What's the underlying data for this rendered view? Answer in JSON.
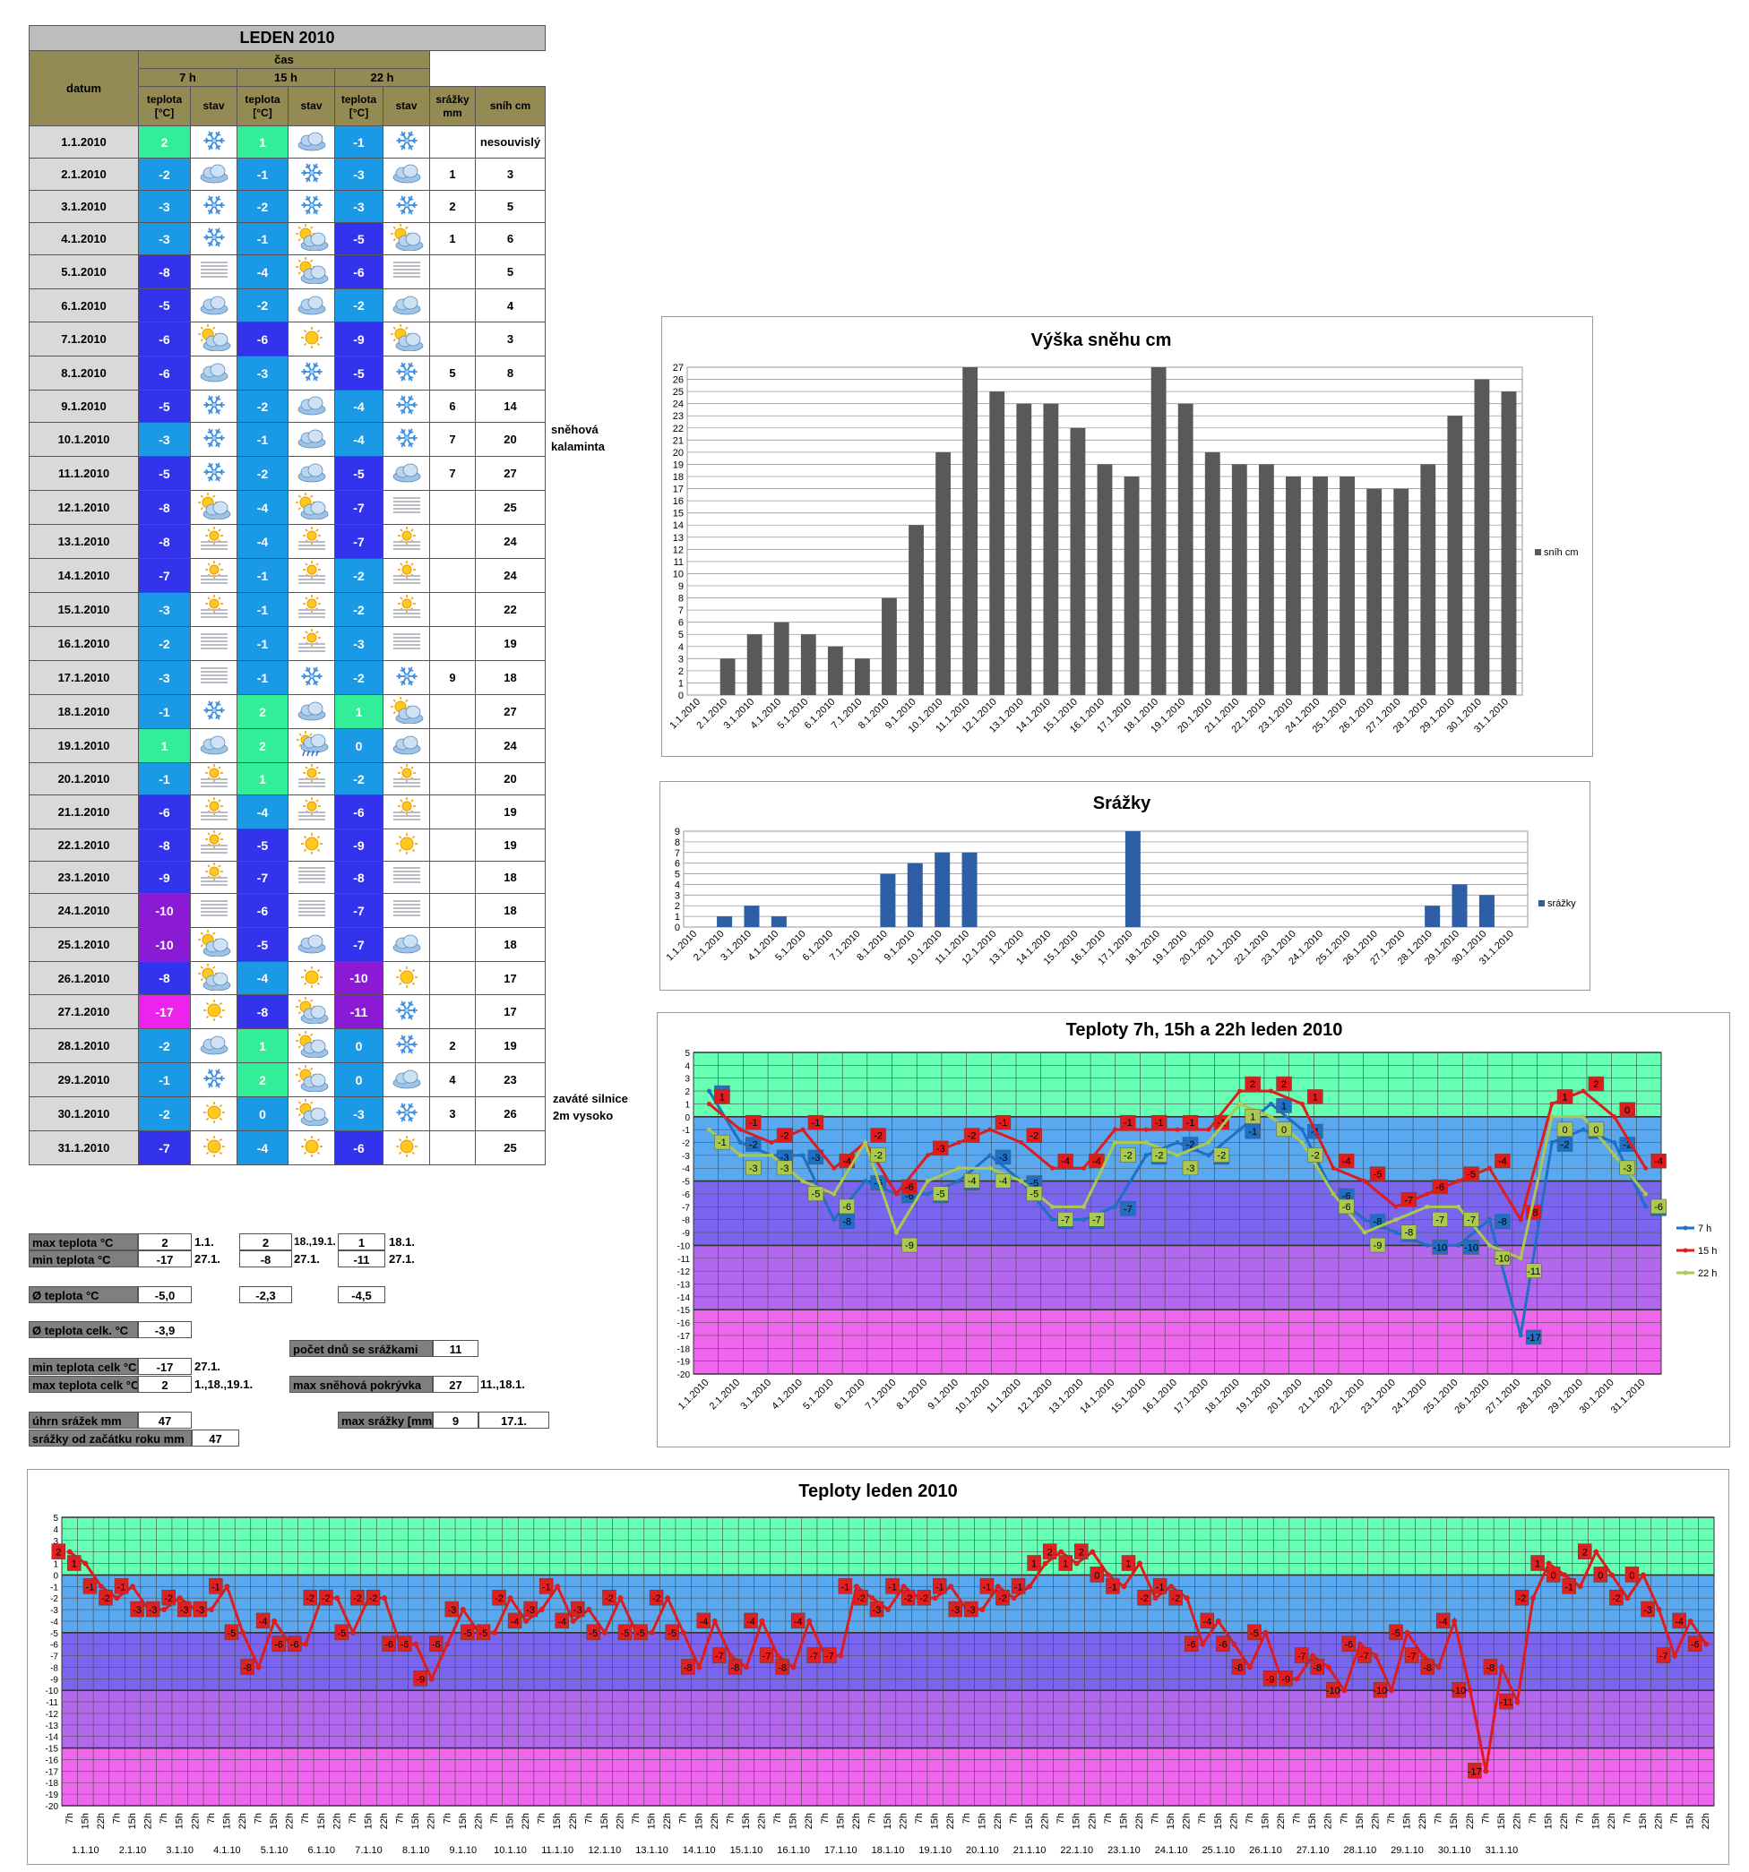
{
  "table": {
    "title": "LEDEN 2010",
    "h_datum": "datum",
    "h_cas": "čas",
    "h_7h": "7 h",
    "h_15h": "15 h",
    "h_22h": "22 h",
    "h_teplota": "teplota [°C]",
    "h_stav": "stav",
    "h_srazky": "srážky mm",
    "h_snih": "sníh cm",
    "rows": [
      {
        "d": "1.1.2010",
        "t7": "2",
        "s7": "snow",
        "t15": "1",
        "s15": "cloud",
        "t22": "-1",
        "s22": "snow",
        "sr": "",
        "sn": "nesouvislý"
      },
      {
        "d": "2.1.2010",
        "t7": "-2",
        "s7": "cloud",
        "t15": "-1",
        "s15": "snow",
        "t22": "-3",
        "s22": "cloud",
        "sr": "1",
        "sn": "3"
      },
      {
        "d": "3.1.2010",
        "t7": "-3",
        "s7": "snow",
        "t15": "-2",
        "s15": "snow",
        "t22": "-3",
        "s22": "snow",
        "sr": "2",
        "sn": "5"
      },
      {
        "d": "4.1.2010",
        "t7": "-3",
        "s7": "snow",
        "t15": "-1",
        "s15": "partly",
        "t22": "-5",
        "s22": "partly",
        "sr": "1",
        "sn": "6"
      },
      {
        "d": "5.1.2010",
        "t7": "-8",
        "s7": "fog",
        "t15": "-4",
        "s15": "partly",
        "t22": "-6",
        "s22": "fog",
        "sr": "",
        "sn": "5"
      },
      {
        "d": "6.1.2010",
        "t7": "-5",
        "s7": "cloud",
        "t15": "-2",
        "s15": "cloud",
        "t22": "-2",
        "s22": "cloud",
        "sr": "",
        "sn": "4"
      },
      {
        "d": "7.1.2010",
        "t7": "-6",
        "s7": "partly",
        "t15": "-6",
        "s15": "sun",
        "t22": "-9",
        "s22": "partly",
        "sr": "",
        "sn": "3"
      },
      {
        "d": "8.1.2010",
        "t7": "-6",
        "s7": "cloud",
        "t15": "-3",
        "s15": "snow",
        "t22": "-5",
        "s22": "snow",
        "sr": "5",
        "sn": "8"
      },
      {
        "d": "9.1.2010",
        "t7": "-5",
        "s7": "snow",
        "t15": "-2",
        "s15": "cloud",
        "t22": "-4",
        "s22": "snow",
        "sr": "6",
        "sn": "14"
      },
      {
        "d": "10.1.2010",
        "t7": "-3",
        "s7": "snow",
        "t15": "-1",
        "s15": "cloud",
        "t22": "-4",
        "s22": "snow",
        "sr": "7",
        "sn": "20"
      },
      {
        "d": "11.1.2010",
        "t7": "-5",
        "s7": "snow",
        "t15": "-2",
        "s15": "cloud",
        "t22": "-5",
        "s22": "cloud",
        "sr": "7",
        "sn": "27"
      },
      {
        "d": "12.1.2010",
        "t7": "-8",
        "s7": "partly",
        "t15": "-4",
        "s15": "partly",
        "t22": "-7",
        "s22": "fog",
        "sr": "",
        "sn": "25"
      },
      {
        "d": "13.1.2010",
        "t7": "-8",
        "s7": "fogsun",
        "t15": "-4",
        "s15": "fogsun",
        "t22": "-7",
        "s22": "fogsun",
        "sr": "",
        "sn": "24"
      },
      {
        "d": "14.1.2010",
        "t7": "-7",
        "s7": "fogsun",
        "t15": "-1",
        "s15": "fogsun",
        "t22": "-2",
        "s22": "fogsun",
        "sr": "",
        "sn": "24"
      },
      {
        "d": "15.1.2010",
        "t7": "-3",
        "s7": "fogsun",
        "t15": "-1",
        "s15": "fogsun",
        "t22": "-2",
        "s22": "fogsun",
        "sr": "",
        "sn": "22"
      },
      {
        "d": "16.1.2010",
        "t7": "-2",
        "s7": "fog",
        "t15": "-1",
        "s15": "fogsun",
        "t22": "-3",
        "s22": "fog",
        "sr": "",
        "sn": "19"
      },
      {
        "d": "17.1.2010",
        "t7": "-3",
        "s7": "fog",
        "t15": "-1",
        "s15": "snow",
        "t22": "-2",
        "s22": "snow",
        "sr": "9",
        "sn": "18"
      },
      {
        "d": "18.1.2010",
        "t7": "-1",
        "s7": "snow",
        "t15": "2",
        "s15": "cloud",
        "t22": "1",
        "s22": "partly",
        "sr": "",
        "sn": "27"
      },
      {
        "d": "19.1.2010",
        "t7": "1",
        "s7": "cloud",
        "t15": "2",
        "s15": "rain",
        "t22": "0",
        "s22": "cloud",
        "sr": "",
        "sn": "24"
      },
      {
        "d": "20.1.2010",
        "t7": "-1",
        "s7": "fogsun",
        "t15": "1",
        "s15": "fogsun",
        "t22": "-2",
        "s22": "fogsun",
        "sr": "",
        "sn": "20"
      },
      {
        "d": "21.1.2010",
        "t7": "-6",
        "s7": "fogsun",
        "t15": "-4",
        "s15": "fogsun",
        "t22": "-6",
        "s22": "fogsun",
        "sr": "",
        "sn": "19"
      },
      {
        "d": "22.1.2010",
        "t7": "-8",
        "s7": "fogsun",
        "t15": "-5",
        "s15": "sun",
        "t22": "-9",
        "s22": "sun",
        "sr": "",
        "sn": "19"
      },
      {
        "d": "23.1.2010",
        "t7": "-9",
        "s7": "fogsun",
        "t15": "-7",
        "s15": "fog",
        "t22": "-8",
        "s22": "fog",
        "sr": "",
        "sn": "18"
      },
      {
        "d": "24.1.2010",
        "t7": "-10",
        "s7": "fog",
        "t15": "-6",
        "s15": "fog",
        "t22": "-7",
        "s22": "fog",
        "sr": "",
        "sn": "18"
      },
      {
        "d": "25.1.2010",
        "t7": "-10",
        "s7": "partly",
        "t15": "-5",
        "s15": "cloud",
        "t22": "-7",
        "s22": "cloud",
        "sr": "",
        "sn": "18"
      },
      {
        "d": "26.1.2010",
        "t7": "-8",
        "s7": "partly",
        "t15": "-4",
        "s15": "sun",
        "t22": "-10",
        "s22": "sun",
        "sr": "",
        "sn": "17"
      },
      {
        "d": "27.1.2010",
        "t7": "-17",
        "s7": "sun",
        "t15": "-8",
        "s15": "partly",
        "t22": "-11",
        "s22": "snow",
        "sr": "",
        "sn": "17"
      },
      {
        "d": "28.1.2010",
        "t7": "-2",
        "s7": "cloud",
        "t15": "1",
        "s15": "partly",
        "t22": "0",
        "s22": "snow",
        "sr": "2",
        "sn": "19"
      },
      {
        "d": "29.1.2010",
        "t7": "-1",
        "s7": "snow",
        "t15": "2",
        "s15": "partly",
        "t22": "0",
        "s22": "cloud",
        "sr": "4",
        "sn": "23"
      },
      {
        "d": "30.1.2010",
        "t7": "-2",
        "s7": "sun",
        "t15": "0",
        "s15": "partly",
        "t22": "-3",
        "s22": "snow",
        "sr": "3",
        "sn": "26"
      },
      {
        "d": "31.1.2010",
        "t7": "-7",
        "s7": "sun",
        "t15": "-4",
        "s15": "sun",
        "t22": "-6",
        "s22": "sun",
        "sr": "",
        "sn": "25"
      }
    ]
  },
  "notes": {
    "kalaminta": [
      "sněhová",
      "kalaminta"
    ],
    "silnice": [
      "zaváté silnice",
      "2m vysoko"
    ]
  },
  "summary": {
    "max_teplota": {
      "label": "max teplota °C",
      "v7": "2",
      "d7": "1.1.",
      "v15": "2",
      "d15": "18.,19.1.",
      "v22": "1",
      "d22": "18.1."
    },
    "min_teplota": {
      "label": "min teplota °C",
      "v7": "-17",
      "d7": "27.1.",
      "v15": "-8",
      "d15": "27.1.",
      "v22": "-11",
      "d22": "27.1."
    },
    "avg_teplota": {
      "label": "Ø teplota °C",
      "v7": "-5,0",
      "v15": "-2,3",
      "v22": "-4,5"
    },
    "avg_celk": {
      "label": "Ø teplota celk. °C",
      "v": "-3,9"
    },
    "min_celk": {
      "label": "min teplota celk °C",
      "v": "-17",
      "d": "27.1."
    },
    "max_celk": {
      "label": "max teplota celk °C",
      "v": "2",
      "d": "1.,18.,19.1."
    },
    "uhrn": {
      "label": "úhrn srážek  mm",
      "v": "47"
    },
    "od_zacatku": {
      "label": "srážky od začátku roku mm",
      "v": "47"
    },
    "pocet_dnu": {
      "label": "počet dnů se srážkami",
      "v": "11"
    },
    "max_snehova": {
      "label": "max sněhová pokrývka",
      "v": "27",
      "d": "11.,18.1."
    },
    "max_srazky": {
      "label": "max srážky [mm]",
      "v": "9",
      "d": "17.1."
    }
  },
  "colors": {
    "temp_pos": "#33ee99",
    "temp_0_to_m4": "#1a9ae6",
    "temp_m5_to_m9": "#3333ee",
    "temp_m10_to_m14": "#8a1ad4",
    "temp_m15_and_below": "#ee22ee",
    "snow_bar": "#595959",
    "rain_bar": "#2e5fa6",
    "line_7h": "#1f6fc4",
    "line_15h": "#e01b1b",
    "line_22h": "#a9c94f",
    "band_pos": "#66ffb3",
    "band_0_to_m4": "#5aa9f0",
    "band_m5_to_m9": "#7a66ee",
    "band_m10_to_m14": "#b366ee",
    "band_m15_to_m20": "#ee66ee"
  },
  "chart_data": [
    {
      "type": "bar",
      "title": "Výška sněhu cm",
      "categories": [
        "1.1.2010",
        "2.1.2010",
        "3.1.2010",
        "4.1.2010",
        "5.1.2010",
        "6.1.2010",
        "7.1.2010",
        "8.1.2010",
        "9.1.2010",
        "10.1.2010",
        "11.1.2010",
        "12.1.2010",
        "13.1.2010",
        "14.1.2010",
        "15.1.2010",
        "16.1.2010",
        "17.1.2010",
        "18.1.2010",
        "19.1.2010",
        "20.1.2010",
        "21.1.2010",
        "22.1.2010",
        "23.1.2010",
        "24.1.2010",
        "25.1.2010",
        "26.1.2010",
        "27.1.2010",
        "28.1.2010",
        "29.1.2010",
        "30.1.2010",
        "31.1.2010"
      ],
      "series": [
        {
          "name": "sníh cm",
          "values": [
            0,
            3,
            5,
            6,
            5,
            4,
            3,
            8,
            14,
            20,
            27,
            25,
            24,
            24,
            22,
            19,
            18,
            27,
            24,
            20,
            19,
            19,
            18,
            18,
            18,
            17,
            17,
            19,
            23,
            26,
            25
          ]
        }
      ],
      "ylim": [
        0,
        27
      ],
      "legend": "right"
    },
    {
      "type": "bar",
      "title": "Srážky",
      "categories": [
        "1.1.2010",
        "2.1.2010",
        "3.1.2010",
        "4.1.2010",
        "5.1.2010",
        "6.1.2010",
        "7.1.2010",
        "8.1.2010",
        "9.1.2010",
        "10.1.2010",
        "11.1.2010",
        "12.1.2010",
        "13.1.2010",
        "14.1.2010",
        "15.1.2010",
        "16.1.2010",
        "17.1.2010",
        "18.1.2010",
        "19.1.2010",
        "20.1.2010",
        "21.1.2010",
        "22.1.2010",
        "23.1.2010",
        "24.1.2010",
        "25.1.2010",
        "26.1.2010",
        "27.1.2010",
        "28.1.2010",
        "29.1.2010",
        "30.1.2010",
        "31.1.2010"
      ],
      "series": [
        {
          "name": "srážky",
          "values": [
            0,
            1,
            2,
            1,
            0,
            0,
            0,
            5,
            6,
            7,
            7,
            0,
            0,
            0,
            0,
            0,
            9,
            0,
            0,
            0,
            0,
            0,
            0,
            0,
            0,
            0,
            0,
            2,
            4,
            3,
            0
          ]
        }
      ],
      "ylim": [
        0,
        9
      ],
      "legend": "right"
    },
    {
      "type": "line",
      "title": "Teploty 7h, 15h a 22h leden 2010",
      "categories": [
        "1.1.2010",
        "2.1.2010",
        "3.1.2010",
        "4.1.2010",
        "5.1.2010",
        "6.1.2010",
        "7.1.2010",
        "8.1.2010",
        "9.1.2010",
        "10.1.2010",
        "11.1.2010",
        "12.1.2010",
        "13.1.2010",
        "14.1.2010",
        "15.1.2010",
        "16.1.2010",
        "17.1.2010",
        "18.1.2010",
        "19.1.2010",
        "20.1.2010",
        "21.1.2010",
        "22.1.2010",
        "23.1.2010",
        "24.1.2010",
        "25.1.2010",
        "26.1.2010",
        "27.1.2010",
        "28.1.2010",
        "29.1.2010",
        "30.1.2010",
        "31.1.2010"
      ],
      "series": [
        {
          "name": "7 h",
          "values": [
            2,
            -2,
            -3,
            -3,
            -8,
            -5,
            -6,
            -6,
            -5,
            -3,
            -5,
            -8,
            -8,
            -7,
            -3,
            -2,
            -3,
            -1,
            1,
            -1,
            -6,
            -8,
            -9,
            -10,
            -10,
            -8,
            -17,
            -2,
            -1,
            -2,
            -7
          ]
        },
        {
          "name": "15 h",
          "values": [
            1,
            -1,
            -2,
            -1,
            -4,
            -2,
            -6,
            -3,
            -2,
            -1,
            -2,
            -4,
            -4,
            -1,
            -1,
            -1,
            -1,
            2,
            2,
            1,
            -4,
            -5,
            -7,
            -6,
            -5,
            -4,
            -8,
            1,
            2,
            0,
            -4
          ]
        },
        {
          "name": "22 h",
          "values": [
            -1,
            -3,
            -3,
            -5,
            -6,
            -2,
            -9,
            -5,
            -4,
            -4,
            -5,
            -7,
            -7,
            -2,
            -2,
            -3,
            -2,
            1,
            0,
            -2,
            -6,
            -9,
            -8,
            -7,
            -7,
            -10,
            -11,
            0,
            0,
            -3,
            -6
          ]
        }
      ],
      "ylim": [
        -20,
        5
      ],
      "legend": "right"
    },
    {
      "type": "line",
      "title": "Teploty leden 2010",
      "day_labels": [
        "1.1.10",
        "2.1.10",
        "3.1.10",
        "4.1.10",
        "5.1.10",
        "6.1.10",
        "7.1.10",
        "8.1.10",
        "9.1.10",
        "10.1.10",
        "11.1.10",
        "12.1.10",
        "13.1.10",
        "14.1.10",
        "15.1.10",
        "16.1.10",
        "17.1.10",
        "18.1.10",
        "19.1.10",
        "20.1.10",
        "21.1.10",
        "22.1.10",
        "23.1.10",
        "24.1.10",
        "25.1.10",
        "26.1.10",
        "27.1.10",
        "28.1.10",
        "29.1.10",
        "30.1.10",
        "31.1.10"
      ],
      "hour_labels": [
        "7h",
        "15h",
        "22h"
      ],
      "series": [
        {
          "name": "teplota",
          "values": [
            2,
            1,
            -1,
            -2,
            -1,
            -3,
            -3,
            -2,
            -3,
            -3,
            -1,
            -5,
            -8,
            -4,
            -6,
            -6,
            -2,
            -2,
            -5,
            -2,
            -2,
            -6,
            -6,
            -9,
            -6,
            -3,
            -5,
            -5,
            -2,
            -4,
            -3,
            -1,
            -4,
            -3,
            -5,
            -2,
            -5,
            -5,
            -2,
            -5,
            -8,
            -4,
            -7,
            -8,
            -4,
            -7,
            -8,
            -4,
            -7,
            -7,
            -1,
            -2,
            -3,
            -1,
            -2,
            -2,
            -1,
            -3,
            -3,
            -1,
            -2,
            -1,
            1,
            2,
            1,
            2,
            0,
            -1,
            1,
            -2,
            -1,
            -2,
            -6,
            -4,
            -6,
            -8,
            -5,
            -9,
            -9,
            -7,
            -8,
            -10,
            -6,
            -7,
            -10,
            -5,
            -7,
            -8,
            -4,
            -10,
            -17,
            -8,
            -11,
            -2,
            1,
            0,
            -1,
            2,
            0,
            -2,
            0,
            -3,
            -7,
            -4,
            -6
          ]
        }
      ],
      "ylim": [
        -20,
        5
      ]
    }
  ]
}
